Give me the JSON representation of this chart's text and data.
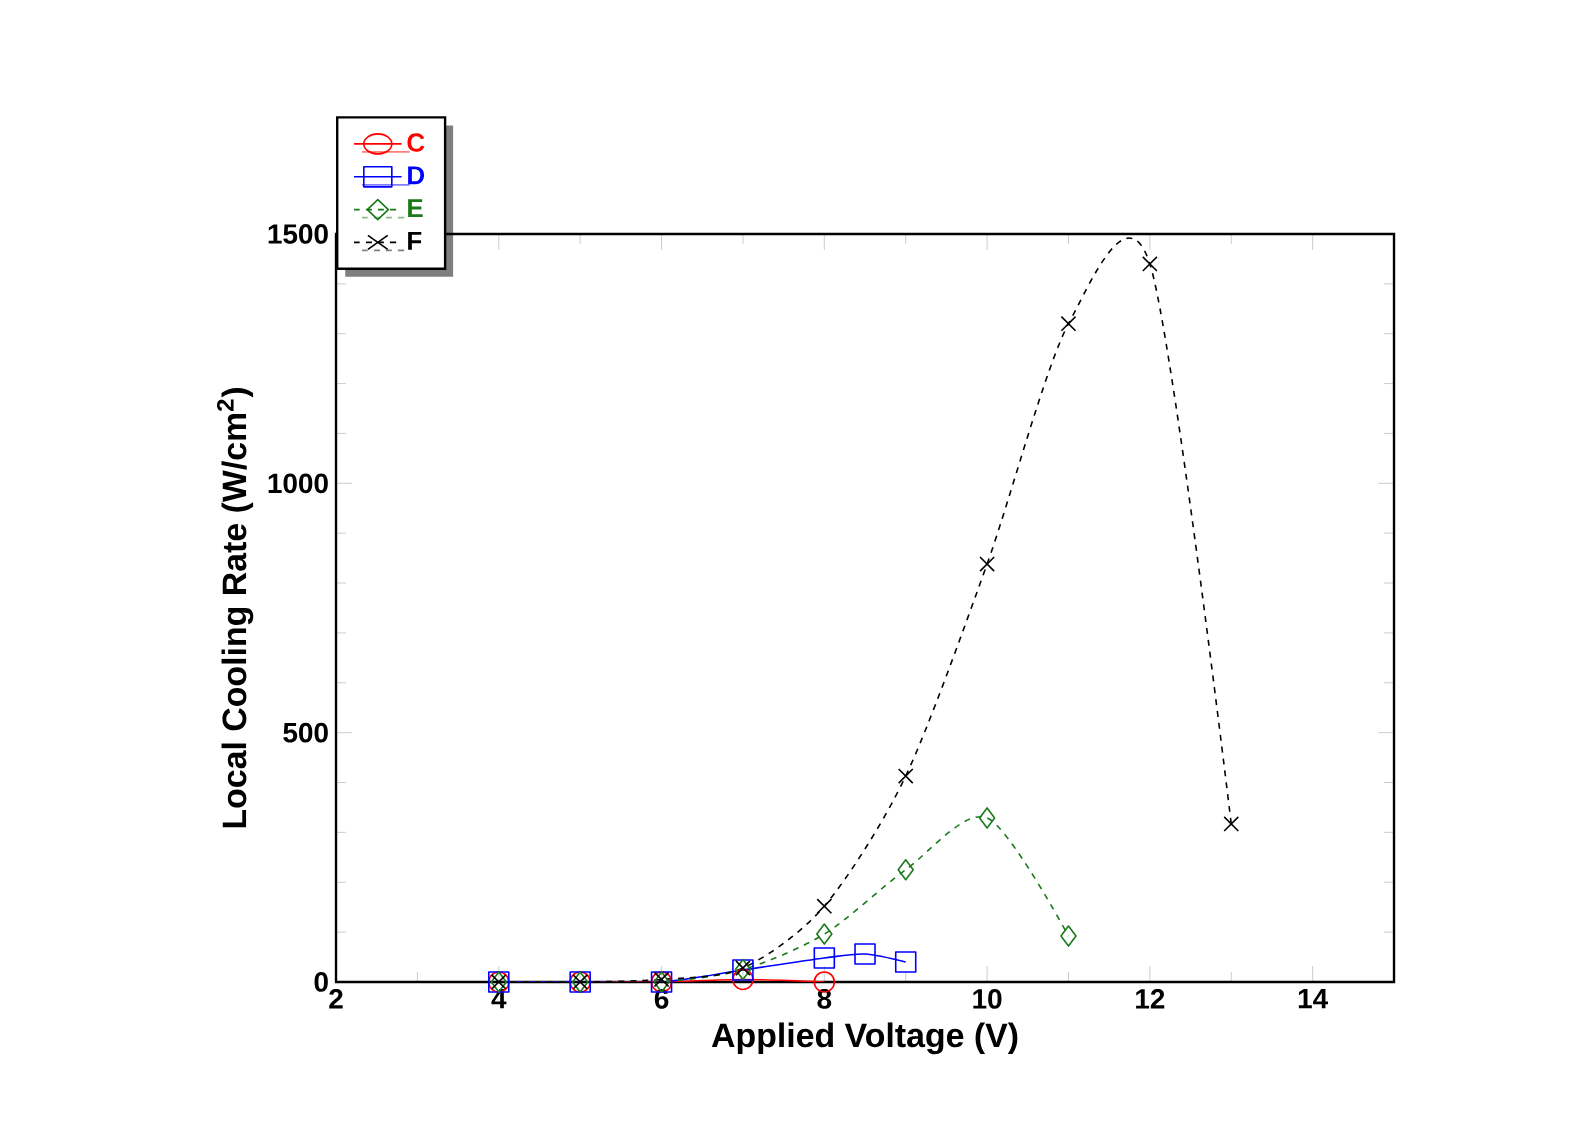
{
  "chart_data": {
    "type": "line",
    "xlabel": "Applied Voltage (V)",
    "ylabel": "Local Cooling Rate (W/cm$^{2}$)",
    "xlim": [
      2,
      15
    ],
    "ylim": [
      0,
      1500
    ],
    "xticks": [
      2,
      4,
      6,
      8,
      10,
      12,
      14
    ],
    "yticks": [
      0,
      500,
      1000,
      1500
    ],
    "grid": false,
    "legend": "top left",
    "series": [
      {
        "name": "C",
        "color": "#ff0000",
        "marker": "circle",
        "line_style": "solid",
        "x": [
          4,
          5,
          6,
          7,
          8
        ],
        "values": [
          0,
          0,
          0,
          5,
          0
        ]
      },
      {
        "name": "D",
        "color": "#0000ff",
        "marker": "square",
        "line_style": "solid",
        "x": [
          4,
          5,
          6,
          7,
          8,
          8.5,
          9
        ],
        "values": [
          0,
          0,
          0,
          24,
          48,
          56,
          40
        ]
      },
      {
        "name": "E",
        "color": "#1a7a1a",
        "marker": "diamond",
        "line_style": "dashed",
        "x": [
          4,
          5,
          6,
          7,
          8,
          9,
          10,
          11
        ],
        "values": [
          0,
          0,
          0,
          25,
          96,
          225,
          329,
          92
        ]
      },
      {
        "name": "F",
        "color": "#000000",
        "marker": "cross",
        "line_style": "dashed",
        "x": [
          4,
          5,
          6,
          7,
          8,
          9,
          10,
          11,
          12,
          13
        ],
        "values": [
          0,
          0,
          5,
          28,
          152,
          413,
          838,
          1320,
          1440,
          317
        ]
      }
    ]
  }
}
